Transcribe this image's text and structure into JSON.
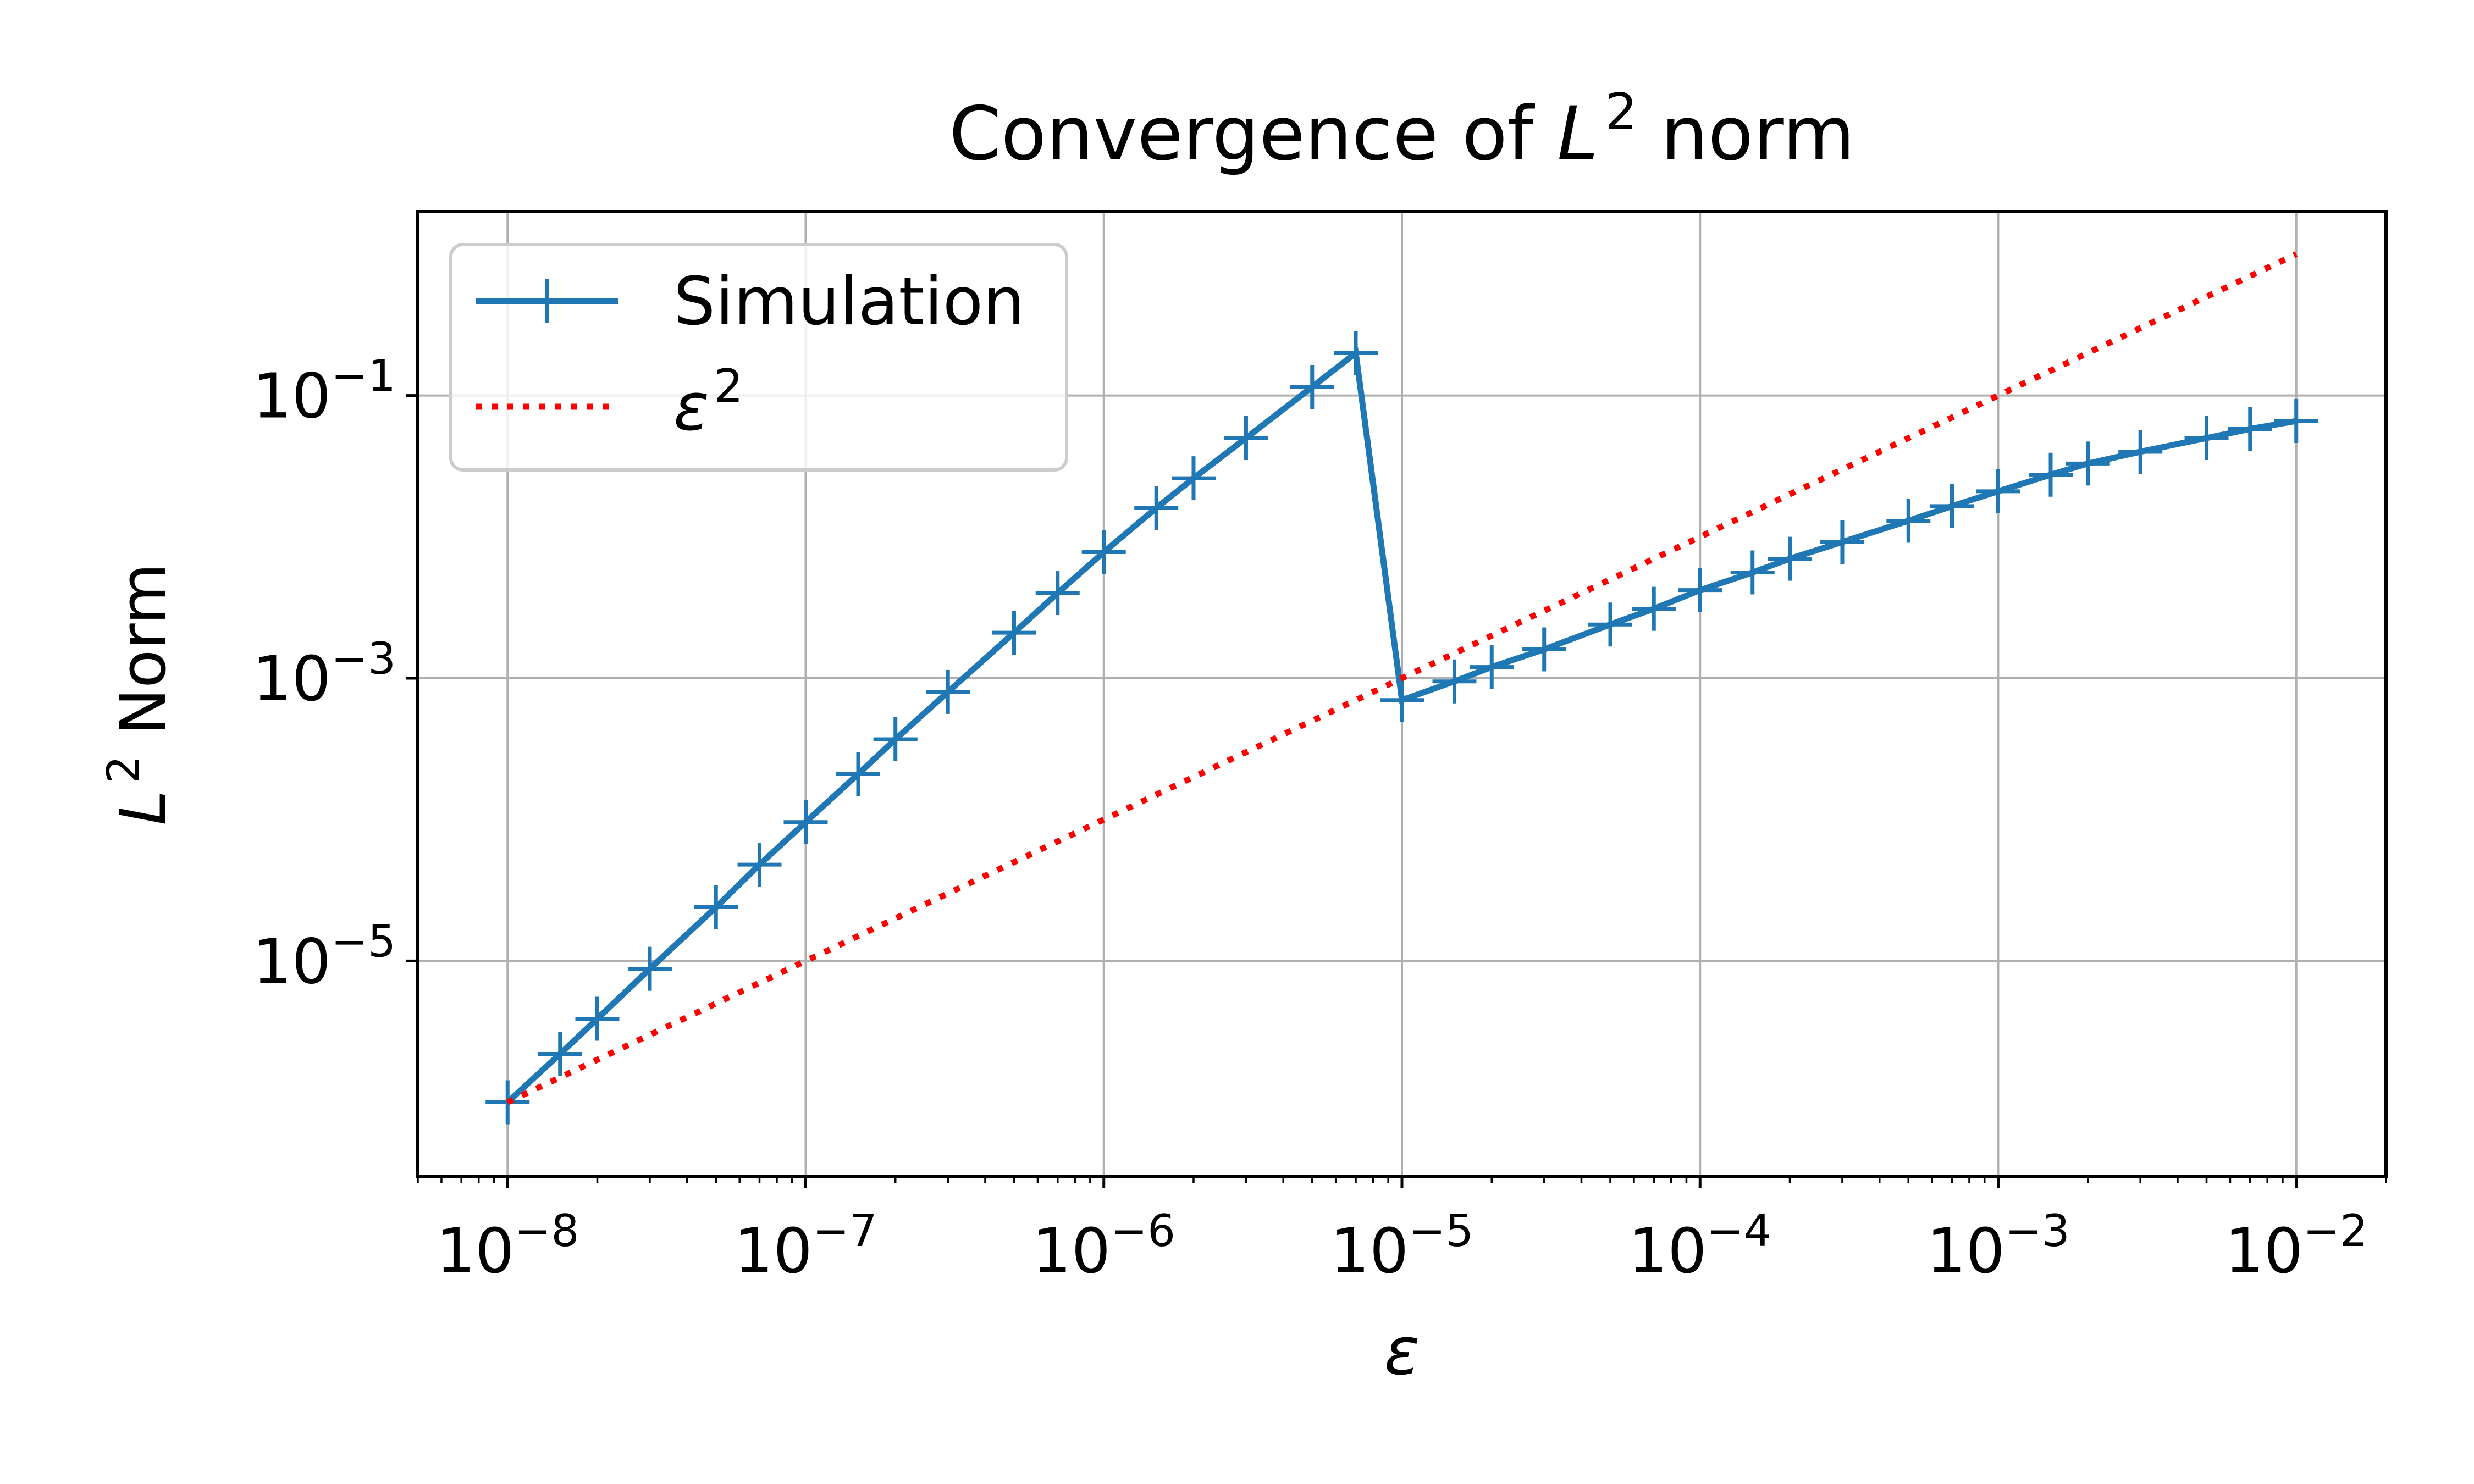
{
  "chart_data": {
    "type": "line",
    "title": {
      "prefix": "Convergence of ",
      "var": "L",
      "sup": "2",
      "suffix": " norm"
    },
    "xlabel": "ε",
    "ylabel": {
      "var": "L",
      "sup": "2",
      "suffix": " Norm"
    },
    "xscale": "log",
    "yscale": "log",
    "xlim": [
      5e-09,
      0.02
    ],
    "ylim": [
      3e-07,
      2.0
    ],
    "grid": true,
    "legend_position": "top-left",
    "x_ticks": [
      {
        "base": "10",
        "exp": "−8",
        "value": 1e-08
      },
      {
        "base": "10",
        "exp": "−7",
        "value": 1e-07
      },
      {
        "base": "10",
        "exp": "−6",
        "value": 1e-06
      },
      {
        "base": "10",
        "exp": "−5",
        "value": 1e-05
      },
      {
        "base": "10",
        "exp": "−4",
        "value": 0.0001
      },
      {
        "base": "10",
        "exp": "−3",
        "value": 0.001
      },
      {
        "base": "10",
        "exp": "−2",
        "value": 0.01
      }
    ],
    "y_ticks": [
      {
        "base": "10",
        "exp": "−5",
        "value": 1e-05
      },
      {
        "base": "10",
        "exp": "−3",
        "value": 0.001
      },
      {
        "base": "10",
        "exp": "−1",
        "value": 0.1
      }
    ],
    "series": [
      {
        "name": "Simulation",
        "style": "solid-plus",
        "color": "#1f77b4",
        "x": [
          1e-08,
          1.5e-08,
          2e-08,
          3e-08,
          5e-08,
          7e-08,
          1e-07,
          1.5e-07,
          2e-07,
          3e-07,
          5e-07,
          7e-07,
          1e-06,
          1.5e-06,
          2e-06,
          3e-06,
          5e-06,
          7e-06,
          1e-05,
          1.5e-05,
          2e-05,
          3e-05,
          5e-05,
          7e-05,
          0.0001,
          0.00015,
          0.0002,
          0.0003,
          0.0005,
          0.0007,
          0.001,
          0.0015,
          0.002,
          0.003,
          0.005,
          0.007,
          0.01
        ],
        "y": [
          1e-06,
          2.2e-06,
          3.9e-06,
          8.8e-06,
          2.4e-05,
          4.8e-05,
          9.6e-05,
          0.00021,
          0.00037,
          0.0008,
          0.0021,
          0.004,
          0.0078,
          0.016,
          0.026,
          0.05,
          0.115,
          0.2,
          0.0007,
          0.00095,
          0.0012,
          0.0016,
          0.0024,
          0.0031,
          0.0042,
          0.0056,
          0.007,
          0.0092,
          0.013,
          0.0165,
          0.021,
          0.0275,
          0.033,
          0.04,
          0.05,
          0.058,
          0.066
        ]
      },
      {
        "name": "ε",
        "name_sup": "2",
        "style": "dotted",
        "color": "#ff0000",
        "x": [
          1e-08,
          0.01
        ],
        "y": [
          1e-06,
          1.0
        ]
      }
    ]
  }
}
